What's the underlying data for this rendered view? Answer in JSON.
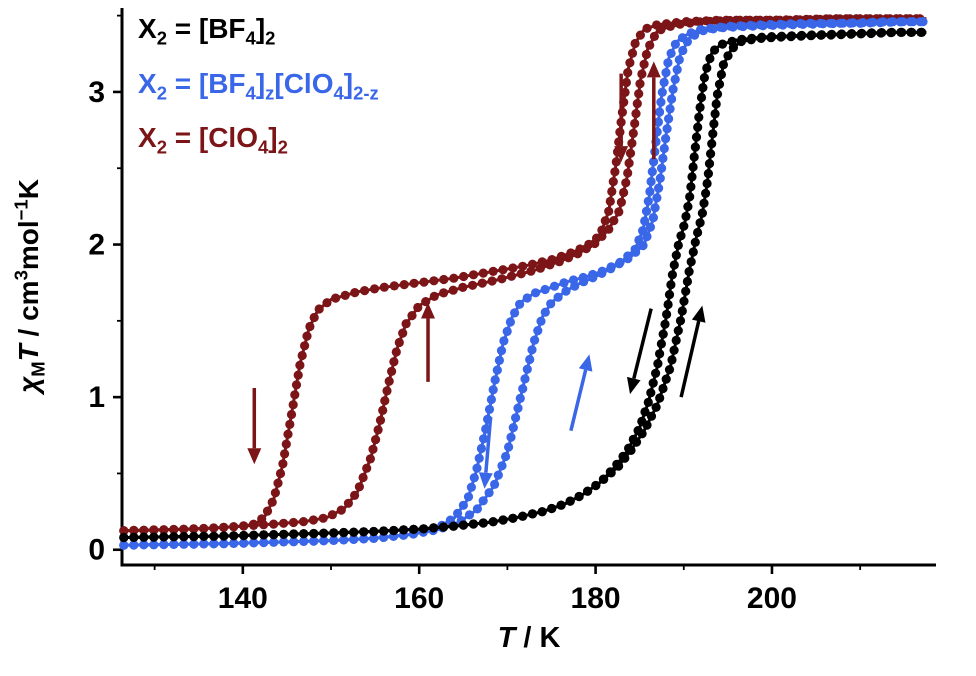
{
  "figure": {
    "legend": {
      "entries": [
        {
          "id": "bf4",
          "color": "#000000",
          "segments": [
            {
              "t": "X"
            },
            {
              "s": "2"
            },
            {
              "t": " = [BF"
            },
            {
              "s": "4"
            },
            {
              "t": "]"
            },
            {
              "s": "2"
            }
          ]
        },
        {
          "id": "mixed",
          "color": "#3a66e8",
          "segments": [
            {
              "t": "X"
            },
            {
              "s": "2"
            },
            {
              "t": " = [BF"
            },
            {
              "s": "4"
            },
            {
              "t": "]"
            },
            {
              "s": "z"
            },
            {
              "t": "[ClO"
            },
            {
              "s": "4"
            },
            {
              "t": "]"
            },
            {
              "s": "2-z"
            }
          ]
        },
        {
          "id": "clo4",
          "color": "#7c1518",
          "segments": [
            {
              "t": "X"
            },
            {
              "s": "2"
            },
            {
              "t": " = [ClO"
            },
            {
              "s": "4"
            },
            {
              "t": "]"
            },
            {
              "s": "2"
            }
          ]
        }
      ]
    }
  },
  "chart_data": {
    "type": "line",
    "title": "",
    "xlabel_segments": [
      {
        "t": "T",
        "i": true
      },
      {
        "t": " / K"
      }
    ],
    "ylabel_segments": [
      {
        "t": "χ",
        "i": true
      },
      {
        "s": "M"
      },
      {
        "t": "T",
        "i": true
      },
      {
        "t": " / cm"
      },
      {
        "p": "3"
      },
      {
        "t": "mol"
      },
      {
        "p": "−1"
      },
      {
        "t": "K"
      }
    ],
    "xlim": [
      126.3,
      218.6
    ],
    "ylim": [
      -0.1,
      3.55
    ],
    "axis_color": "#000000",
    "background": "#ffffff",
    "x_ticks": {
      "major": [
        140,
        160,
        180,
        200
      ],
      "labels": [
        "140",
        "160",
        "180",
        "200"
      ],
      "minor": [
        130,
        150,
        170,
        190,
        210
      ]
    },
    "y_ticks": {
      "major": [
        0,
        1,
        2,
        3
      ],
      "labels": [
        "0",
        "1",
        "2",
        "3"
      ],
      "minor": [
        0.5,
        1.5,
        2.5,
        3.5
      ]
    },
    "series": [
      {
        "id": "clo4",
        "name": "X2 = [ClO4]2",
        "color": "#7c1518",
        "branches": {
          "cooling": [
            [
              126.5,
              0.125
            ],
            [
              130,
              0.13
            ],
            [
              134,
              0.135
            ],
            [
              137.5,
              0.145
            ],
            [
              140,
              0.155
            ],
            [
              141.5,
              0.17
            ],
            [
              142.5,
              0.22
            ],
            [
              143.5,
              0.33
            ],
            [
              144.5,
              0.55
            ],
            [
              145.5,
              0.88
            ],
            [
              146.5,
              1.22
            ],
            [
              147.5,
              1.45
            ],
            [
              148.5,
              1.57
            ],
            [
              150,
              1.64
            ],
            [
              153,
              1.69
            ],
            [
              156,
              1.72
            ],
            [
              160,
              1.75
            ],
            [
              164,
              1.78
            ],
            [
              168,
              1.82
            ],
            [
              172,
              1.86
            ],
            [
              175,
              1.9
            ],
            [
              177,
              1.94
            ],
            [
              179,
              1.99
            ],
            [
              180.5,
              2.06
            ],
            [
              181.5,
              2.22
            ],
            [
              182.3,
              2.52
            ],
            [
              183,
              2.85
            ],
            [
              183.7,
              3.15
            ],
            [
              184.5,
              3.32
            ],
            [
              185.5,
              3.41
            ],
            [
              187,
              3.44
            ],
            [
              190,
              3.46
            ],
            [
              194,
              3.47
            ],
            [
              200,
              3.47
            ],
            [
              207,
              3.48
            ],
            [
              213,
              3.48
            ],
            [
              217.5,
              3.48
            ]
          ],
          "heating": [
            [
              126.5,
              0.125
            ],
            [
              131,
              0.13
            ],
            [
              136,
              0.14
            ],
            [
              140,
              0.155
            ],
            [
              144,
              0.17
            ],
            [
              147,
              0.185
            ],
            [
              149.5,
              0.21
            ],
            [
              151.5,
              0.27
            ],
            [
              153,
              0.38
            ],
            [
              154.5,
              0.6
            ],
            [
              155.5,
              0.82
            ],
            [
              156.5,
              1.08
            ],
            [
              157.5,
              1.32
            ],
            [
              158.5,
              1.48
            ],
            [
              160,
              1.6
            ],
            [
              162,
              1.67
            ],
            [
              165,
              1.72
            ],
            [
              169,
              1.77
            ],
            [
              173,
              1.83
            ],
            [
              176,
              1.89
            ],
            [
              178,
              1.94
            ],
            [
              180,
              2.01
            ],
            [
              181.5,
              2.1
            ],
            [
              182.7,
              2.22
            ],
            [
              183.6,
              2.45
            ],
            [
              184.4,
              2.78
            ],
            [
              185.1,
              3.08
            ],
            [
              185.9,
              3.28
            ],
            [
              187,
              3.4
            ],
            [
              189,
              3.44
            ],
            [
              192,
              3.46
            ],
            [
              196,
              3.47
            ],
            [
              202,
              3.47
            ],
            [
              208,
              3.48
            ],
            [
              213,
              3.48
            ],
            [
              217.5,
              3.48
            ]
          ]
        }
      },
      {
        "id": "mixed",
        "name": "X2 = [BF4]z[ClO4]2-z",
        "color": "#3a66e8",
        "branches": {
          "cooling": [
            [
              126.5,
              0.03
            ],
            [
              132,
              0.035
            ],
            [
              138,
              0.04
            ],
            [
              144,
              0.05
            ],
            [
              150,
              0.06
            ],
            [
              155,
              0.075
            ],
            [
              159,
              0.1
            ],
            [
              162,
              0.14
            ],
            [
              164,
              0.21
            ],
            [
              165.5,
              0.33
            ],
            [
              166.5,
              0.52
            ],
            [
              167.5,
              0.78
            ],
            [
              168.5,
              1.08
            ],
            [
              169.5,
              1.35
            ],
            [
              170.5,
              1.52
            ],
            [
              171.5,
              1.62
            ],
            [
              173,
              1.68
            ],
            [
              175,
              1.72
            ],
            [
              177,
              1.76
            ],
            [
              179,
              1.79
            ],
            [
              181,
              1.83
            ],
            [
              183,
              1.89
            ],
            [
              184.5,
              1.97
            ],
            [
              185.4,
              2.1
            ],
            [
              186.1,
              2.32
            ],
            [
              186.8,
              2.65
            ],
            [
              187.5,
              2.98
            ],
            [
              188.3,
              3.22
            ],
            [
              189.2,
              3.33
            ],
            [
              190.5,
              3.38
            ],
            [
              192,
              3.41
            ],
            [
              195,
              3.43
            ],
            [
              199,
              3.44
            ],
            [
              204,
              3.45
            ],
            [
              210,
              3.45
            ],
            [
              215,
              3.46
            ],
            [
              217.5,
              3.46
            ]
          ],
          "heating": [
            [
              126.5,
              0.03
            ],
            [
              132,
              0.035
            ],
            [
              138,
              0.04
            ],
            [
              144,
              0.05
            ],
            [
              150,
              0.06
            ],
            [
              155,
              0.075
            ],
            [
              159,
              0.1
            ],
            [
              162,
              0.13
            ],
            [
              164.5,
              0.18
            ],
            [
              166.5,
              0.26
            ],
            [
              168.5,
              0.42
            ],
            [
              170,
              0.64
            ],
            [
              171,
              0.88
            ],
            [
              172,
              1.12
            ],
            [
              173,
              1.36
            ],
            [
              174,
              1.53
            ],
            [
              175,
              1.62
            ],
            [
              176.5,
              1.69
            ],
            [
              178,
              1.74
            ],
            [
              180,
              1.79
            ],
            [
              182,
              1.85
            ],
            [
              184,
              1.92
            ],
            [
              185.5,
              2.0
            ],
            [
              186.5,
              2.16
            ],
            [
              187.3,
              2.42
            ],
            [
              188,
              2.72
            ],
            [
              188.8,
              3.02
            ],
            [
              189.6,
              3.24
            ],
            [
              190.6,
              3.35
            ],
            [
              192,
              3.4
            ],
            [
              194,
              3.42
            ],
            [
              197,
              3.43
            ],
            [
              202,
              3.44
            ],
            [
              208,
              3.45
            ],
            [
              213,
              3.46
            ],
            [
              217.5,
              3.46
            ]
          ]
        }
      },
      {
        "id": "bf4",
        "name": "X2 = [BF4]2",
        "color": "#000000",
        "branches": {
          "cooling": [
            [
              126.5,
              0.08
            ],
            [
              132,
              0.085
            ],
            [
              138,
              0.09
            ],
            [
              144,
              0.1
            ],
            [
              150,
              0.11
            ],
            [
              155,
              0.12
            ],
            [
              160,
              0.135
            ],
            [
              164,
              0.155
            ],
            [
              168,
              0.18
            ],
            [
              171,
              0.21
            ],
            [
              174,
              0.25
            ],
            [
              176.5,
              0.3
            ],
            [
              178.5,
              0.36
            ],
            [
              180.5,
              0.44
            ],
            [
              182,
              0.53
            ],
            [
              183.5,
              0.64
            ],
            [
              185,
              0.8
            ],
            [
              186,
              0.97
            ],
            [
              187,
              1.2
            ],
            [
              188,
              1.52
            ],
            [
              188.7,
              1.8
            ],
            [
              189.4,
              2.0
            ],
            [
              190.1,
              2.14
            ],
            [
              190.7,
              2.32
            ],
            [
              191.2,
              2.58
            ],
            [
              191.8,
              2.88
            ],
            [
              192.4,
              3.12
            ],
            [
              193.2,
              3.26
            ],
            [
              194.2,
              3.31
            ],
            [
              196,
              3.34
            ],
            [
              199,
              3.36
            ],
            [
              203,
              3.37
            ],
            [
              208,
              3.38
            ],
            [
              213,
              3.39
            ],
            [
              217.5,
              3.39
            ]
          ],
          "heating": [
            [
              126.5,
              0.08
            ],
            [
              132,
              0.085
            ],
            [
              138,
              0.09
            ],
            [
              144,
              0.1
            ],
            [
              150,
              0.11
            ],
            [
              155,
              0.12
            ],
            [
              160,
              0.135
            ],
            [
              164,
              0.155
            ],
            [
              168,
              0.18
            ],
            [
              171,
              0.21
            ],
            [
              174,
              0.25
            ],
            [
              176.5,
              0.3
            ],
            [
              178.5,
              0.36
            ],
            [
              180.5,
              0.44
            ],
            [
              182.5,
              0.54
            ],
            [
              184,
              0.65
            ],
            [
              185.5,
              0.78
            ],
            [
              187,
              0.95
            ],
            [
              188.5,
              1.2
            ],
            [
              189.7,
              1.52
            ],
            [
              190.6,
              1.82
            ],
            [
              191.4,
              2.04
            ],
            [
              192.1,
              2.2
            ],
            [
              192.7,
              2.42
            ],
            [
              193.2,
              2.68
            ],
            [
              193.8,
              2.98
            ],
            [
              194.5,
              3.18
            ],
            [
              195.4,
              3.28
            ],
            [
              196.5,
              3.33
            ],
            [
              198.5,
              3.35
            ],
            [
              201,
              3.36
            ],
            [
              205,
              3.37
            ],
            [
              210,
              3.38
            ],
            [
              214,
              3.39
            ],
            [
              217.5,
              3.39
            ]
          ]
        }
      }
    ],
    "arrows": [
      {
        "color": "#7c1518",
        "direction": "down",
        "from": [
          141.3,
          1.06
        ],
        "to": [
          141.3,
          0.56
        ]
      },
      {
        "color": "#7c1518",
        "direction": "up",
        "from": [
          161.0,
          1.1
        ],
        "to": [
          161.0,
          1.62
        ]
      },
      {
        "color": "#7c1518",
        "direction": "down",
        "from": [
          182.9,
          3.12
        ],
        "to": [
          182.9,
          2.54
        ]
      },
      {
        "color": "#7c1518",
        "direction": "up",
        "from": [
          186.6,
          2.56
        ],
        "to": [
          186.6,
          3.2
        ]
      },
      {
        "color": "#3a66e8",
        "direction": "down",
        "from": [
          168.1,
          0.87
        ],
        "to": [
          167.4,
          0.4
        ]
      },
      {
        "color": "#3a66e8",
        "direction": "up",
        "from": [
          177.2,
          0.78
        ],
        "to": [
          179.3,
          1.28
        ]
      },
      {
        "color": "#000000",
        "direction": "down",
        "from": [
          186.3,
          1.58
        ],
        "to": [
          183.9,
          1.02
        ]
      },
      {
        "color": "#000000",
        "direction": "up",
        "from": [
          189.7,
          1.0
        ],
        "to": [
          192.1,
          1.6
        ]
      }
    ]
  }
}
